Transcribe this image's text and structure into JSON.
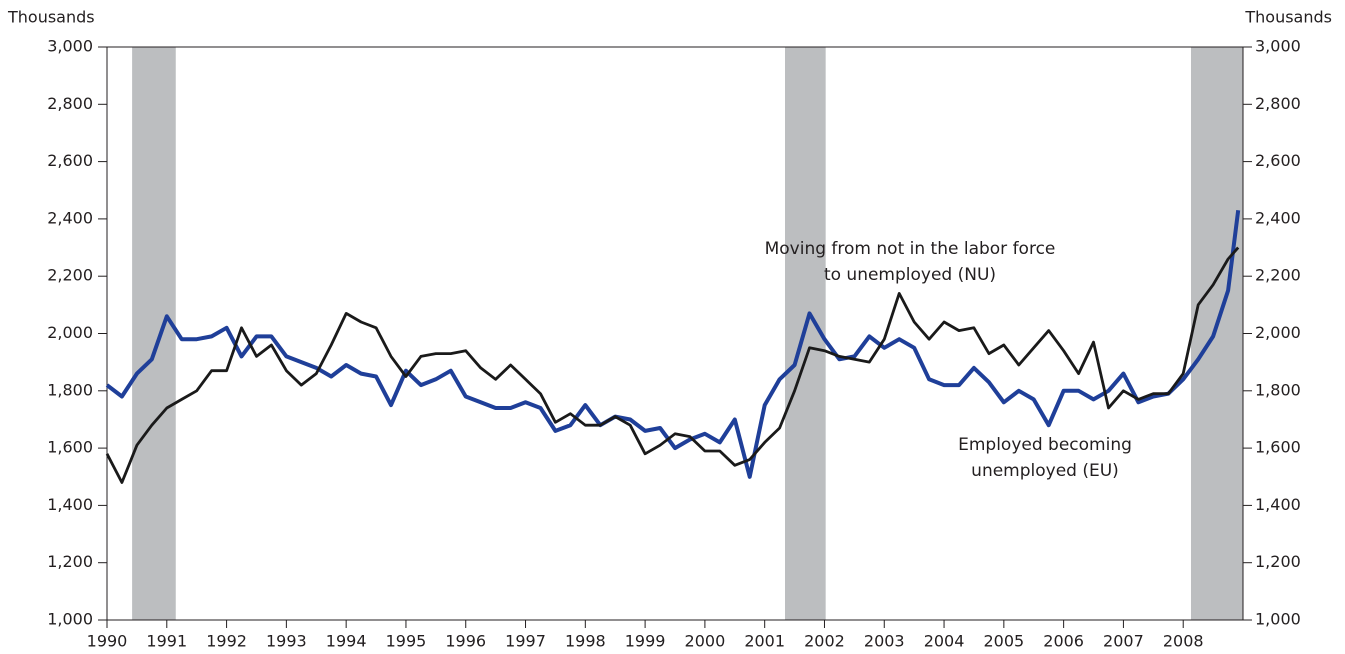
{
  "chart_data": {
    "type": "line",
    "y_label": "Thousands",
    "y2_label": "Thousands",
    "x": [
      1990,
      1990.25,
      1990.5,
      1990.75,
      1991,
      1991.25,
      1991.5,
      1991.75,
      1992,
      1992.25,
      1992.5,
      1992.75,
      1993,
      1993.25,
      1993.5,
      1993.75,
      1994,
      1994.25,
      1994.5,
      1994.75,
      1995,
      1995.25,
      1995.5,
      1995.75,
      1996,
      1996.25,
      1996.5,
      1996.75,
      1997,
      1997.25,
      1997.5,
      1997.75,
      1998,
      1998.25,
      1998.5,
      1998.75,
      1999,
      1999.25,
      1999.5,
      1999.75,
      2000,
      2000.25,
      2000.5,
      2000.75,
      2001,
      2001.25,
      2001.5,
      2001.75,
      2002,
      2002.25,
      2002.5,
      2002.75,
      2003,
      2003.25,
      2003.5,
      2003.75,
      2004,
      2004.25,
      2004.5,
      2004.75,
      2005,
      2005.25,
      2005.5,
      2005.75,
      2006,
      2006.25,
      2006.5,
      2006.75,
      2007,
      2007.25,
      2007.5,
      2007.75,
      2008,
      2008.25,
      2008.5,
      2008.75,
      2008.92
    ],
    "series": [
      {
        "name": "Employed becoming unemployed (EU)",
        "color": "#1f3f99",
        "values": [
          1820,
          1780,
          1860,
          1910,
          2060,
          1980,
          1980,
          1990,
          2020,
          1920,
          1990,
          1990,
          1920,
          1900,
          1880,
          1850,
          1890,
          1860,
          1850,
          1750,
          1870,
          1820,
          1840,
          1870,
          1780,
          1760,
          1740,
          1740,
          1760,
          1740,
          1660,
          1680,
          1750,
          1680,
          1710,
          1700,
          1660,
          1670,
          1600,
          1630,
          1650,
          1620,
          1700,
          1500,
          1750,
          1840,
          1890,
          2070,
          1980,
          1910,
          1920,
          1990,
          1950,
          1980,
          1950,
          1840,
          1820,
          1820,
          1880,
          1830,
          1760,
          1800,
          1770,
          1680,
          1800,
          1800,
          1770,
          1800,
          1860,
          1760,
          1780,
          1790,
          1840,
          1910,
          1990,
          2150,
          2430
        ]
      },
      {
        "name": "Moving from not in the labor force to unemployed (NU)",
        "color": "#1a1a1a",
        "values": [
          1580,
          1480,
          1610,
          1680,
          1740,
          1770,
          1800,
          1870,
          1870,
          2020,
          1920,
          1960,
          1870,
          1820,
          1860,
          1960,
          2070,
          2040,
          2020,
          1920,
          1850,
          1920,
          1930,
          1930,
          1940,
          1880,
          1840,
          1890,
          1840,
          1790,
          1690,
          1720,
          1680,
          1680,
          1710,
          1680,
          1580,
          1610,
          1650,
          1640,
          1590,
          1590,
          1540,
          1560,
          1620,
          1670,
          1800,
          1950,
          1940,
          1920,
          1910,
          1900,
          1980,
          2140,
          2040,
          1980,
          2040,
          2010,
          2020,
          1930,
          1960,
          1890,
          1950,
          2010,
          1940,
          1860,
          1970,
          1740,
          1800,
          1770,
          1790,
          1790,
          1860,
          2100,
          2170,
          2260,
          2300
        ]
      }
    ],
    "annotations": [
      {
        "lines": [
          "Moving from not in the labor force",
          "to unemployed (NU)"
        ]
      },
      {
        "lines": [
          "Employed becoming",
          "unemployed (EU)"
        ]
      }
    ],
    "recessions": [
      [
        1990.42,
        1991.15
      ],
      [
        2001.34,
        2002.02
      ],
      [
        2008.13,
        2009
      ]
    ],
    "recession_color": "#bcbec0",
    "xlim": [
      1990,
      2009
    ],
    "xticks": [
      1990,
      1991,
      1992,
      1993,
      1994,
      1995,
      1996,
      1997,
      1998,
      1999,
      2000,
      2001,
      2002,
      2003,
      2004,
      2005,
      2006,
      2007,
      2008
    ],
    "ylim": [
      1000,
      3000
    ],
    "yticks": [
      {
        "value": 1000,
        "label": "1,000"
      },
      {
        "value": 1200,
        "label": "1,200"
      },
      {
        "value": 1400,
        "label": "1,400"
      },
      {
        "value": 1600,
        "label": "1,600"
      },
      {
        "value": 1800,
        "label": "1,800"
      },
      {
        "value": 2000,
        "label": "2,000"
      },
      {
        "value": 2200,
        "label": "2,200"
      },
      {
        "value": 2400,
        "label": "2,400"
      },
      {
        "value": 2600,
        "label": "2,600"
      },
      {
        "value": 2800,
        "label": "2,800"
      },
      {
        "value": 3000,
        "label": "3,000"
      }
    ],
    "y2lim": [
      1000,
      3000
    ],
    "y2ticks": [
      {
        "value": 1000,
        "label": "1,000"
      },
      {
        "value": 1200,
        "label": "1,200"
      },
      {
        "value": 1400,
        "label": "1,400"
      },
      {
        "value": 1600,
        "label": "1,600"
      },
      {
        "value": 1800,
        "label": "1,800"
      },
      {
        "value": 2000,
        "label": "2,000"
      },
      {
        "value": 2200,
        "label": "2,200"
      },
      {
        "value": 2400,
        "label": "2,400"
      },
      {
        "value": 2600,
        "label": "2,600"
      },
      {
        "value": 2800,
        "label": "2,800"
      },
      {
        "value": 3000,
        "label": "3,000"
      }
    ],
    "grid": false
  }
}
